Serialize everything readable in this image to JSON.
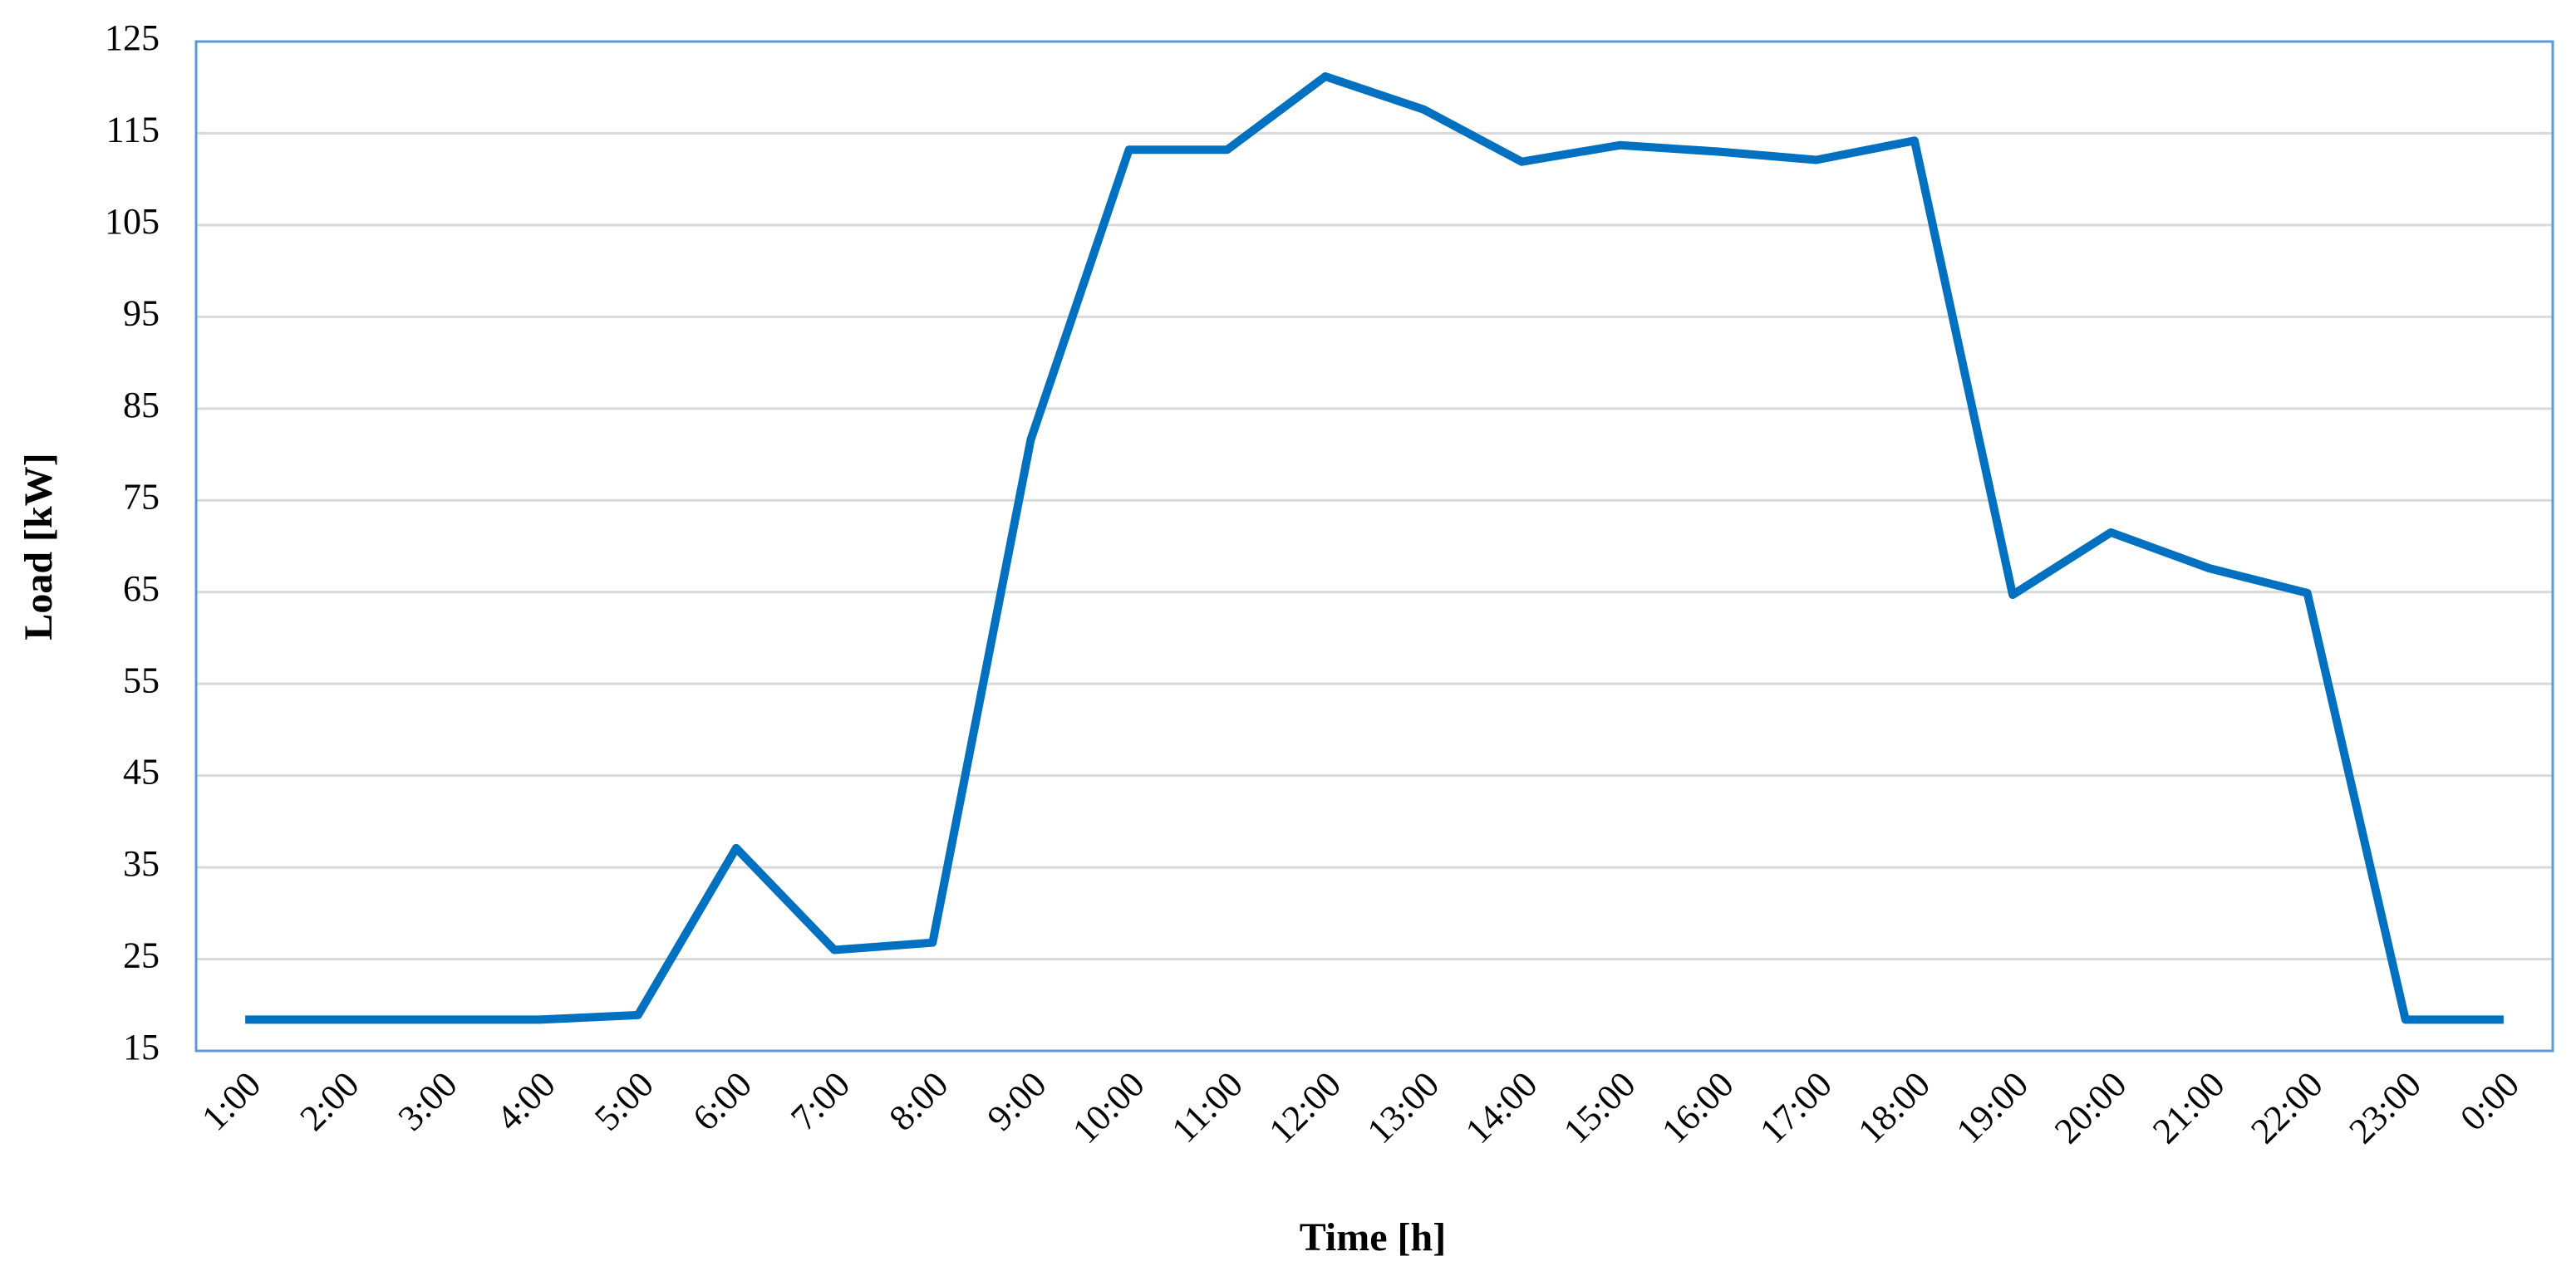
{
  "chart_data": {
    "type": "line",
    "x_label": "Time [h]",
    "y_label": "Load [kW]",
    "categories": [
      "1:00",
      "2:00",
      "3:00",
      "4:00",
      "5:00",
      "6:00",
      "7:00",
      "8:00",
      "9:00",
      "10:00",
      "11:00",
      "12:00",
      "13:00",
      "14:00",
      "15:00",
      "16:00",
      "17:00",
      "18:00",
      "19:00",
      "20:00",
      "21:00",
      "22:00",
      "23:00",
      "0:00"
    ],
    "values": [
      18.4,
      18.4,
      18.4,
      18.4,
      18.9,
      37.1,
      26.0,
      26.8,
      81.6,
      113.2,
      113.2,
      121.2,
      117.6,
      111.9,
      113.7,
      113.0,
      112.1,
      114.2,
      64.7,
      71.5,
      67.6,
      64.9,
      18.4,
      18.4
    ],
    "color": "#0070c0",
    "ylim": [
      15,
      125
    ],
    "yticks": [
      15,
      25,
      35,
      45,
      55,
      65,
      75,
      85,
      95,
      105,
      115,
      125
    ],
    "grid": true
  }
}
